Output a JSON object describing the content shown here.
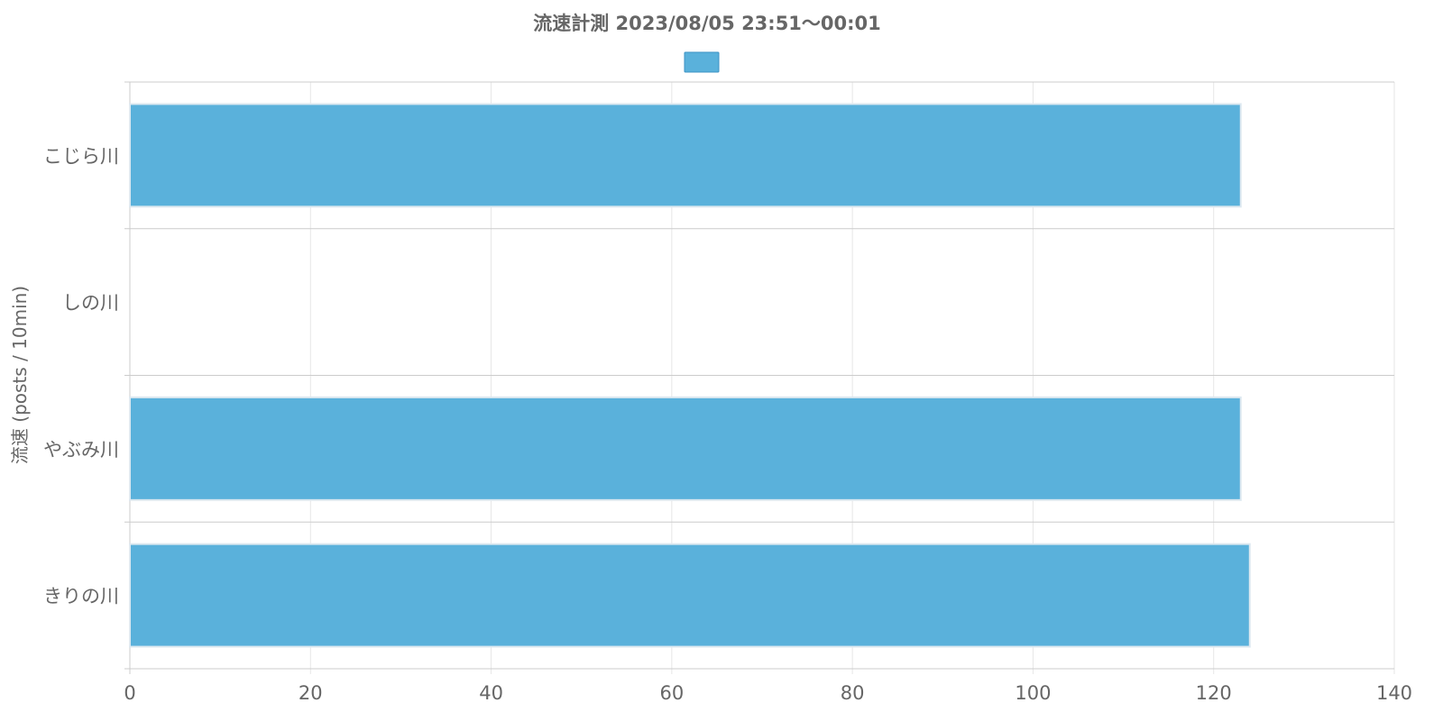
{
  "chart_data": {
    "type": "bar",
    "orientation": "horizontal",
    "title": "流速計測 2023/08/05 23:51～00:01",
    "ylabel": "流速 (posts / 10min)",
    "xlabel": "",
    "categories": [
      "こじら川",
      "しの川",
      "やぶみ川",
      "きりの川"
    ],
    "series": [
      {
        "values": [
          123,
          0,
          123,
          124
        ]
      }
    ],
    "xlim": [
      0,
      140
    ],
    "xticks": [
      0,
      20,
      40,
      60,
      80,
      100,
      120,
      140
    ],
    "grid": true,
    "legend": {
      "position": "top",
      "swatch_only": true
    },
    "colors": {
      "bar_fill": "#5ab1db",
      "bar_stroke": "#dde8f0",
      "legend_fill": "#5ab1db",
      "legend_stroke": "#3d93c4",
      "grid": "#e6e6e6",
      "axis": "#cccccc",
      "text": "#666666"
    }
  }
}
